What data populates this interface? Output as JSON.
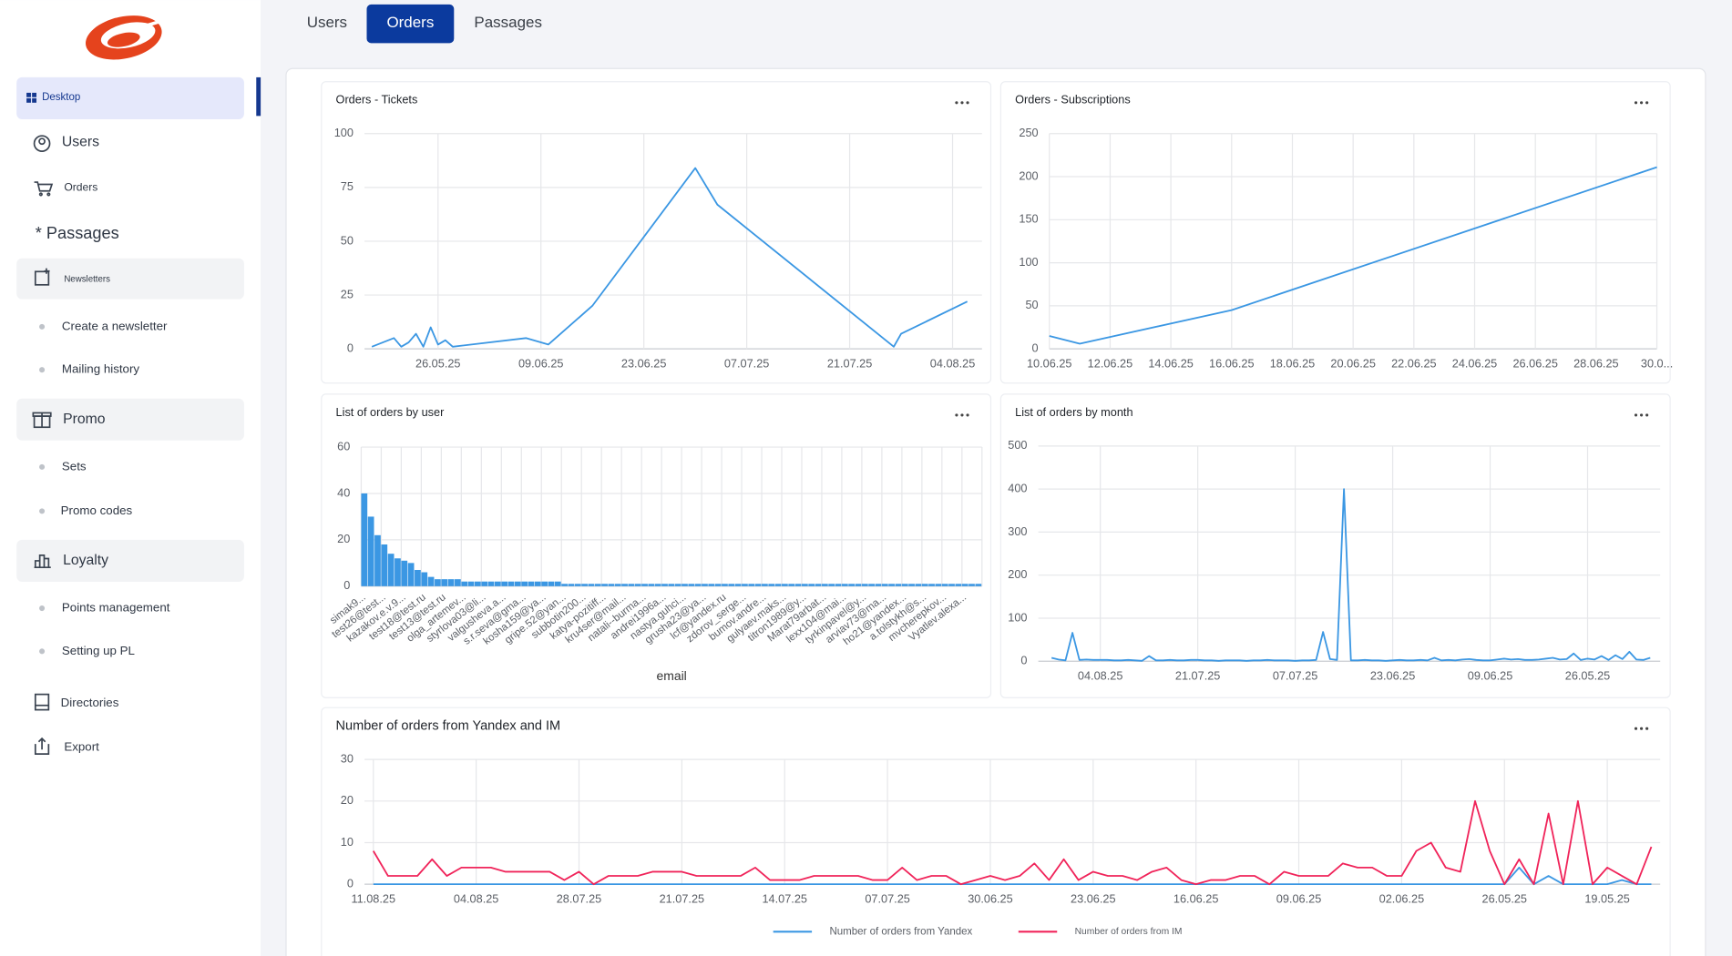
{
  "sidebar": [
    "Desktop",
    "Users",
    "Orders",
    "* Passages",
    "Newsletters",
    "Create a newsletter",
    "Mailing history",
    "Promo",
    "Sets",
    "Promo codes",
    "Loyalty",
    "Points management",
    "Setting up PL",
    "Directories",
    "Export"
  ],
  "tabs": [
    "Users",
    "Orders",
    "Passages"
  ],
  "chart_data": [
    {
      "type": "line",
      "title": "Orders - Tickets",
      "color": "#3b97e3",
      "grid": true,
      "x": [
        "17.05.25",
        "20.05.25",
        "21.05.25",
        "22.05.25",
        "23.05.25",
        "24.05.25",
        "25.05.25",
        "26.05.25",
        "27.05.25",
        "28.05.25",
        "07.06.25",
        "10.06.25",
        "16.06.25",
        "30.06.25",
        "03.07.25",
        "27.07.25",
        "28.07.25",
        "06.08.25"
      ],
      "values": [
        1,
        5,
        1,
        3,
        7,
        1,
        10,
        2,
        4,
        1,
        5,
        2,
        20,
        84,
        67,
        1,
        7,
        22
      ],
      "xlim": [
        "16.05.25",
        "08.08.25"
      ],
      "xticks": [
        "26.05.25",
        "09.06.25",
        "23.06.25",
        "07.07.25",
        "21.07.25",
        "04.08.25"
      ],
      "ylim": [
        0,
        100
      ],
      "yticks": [
        0,
        25,
        50,
        75,
        100
      ]
    },
    {
      "type": "line",
      "title": "Orders - Subscriptions",
      "color": "#3b97e3",
      "grid": true,
      "x": [
        "10.06.25",
        "11.06.25",
        "16.06.25",
        "30.06.25"
      ],
      "values": [
        15,
        6,
        45,
        211
      ],
      "xlim": [
        "10.06.25",
        "30.06.25"
      ],
      "xticks": [
        "10.06.25",
        "12.06.25",
        "14.06.25",
        "16.06.25",
        "18.06.25",
        "20.06.25",
        "22.06.25",
        "24.06.25",
        "26.06.25",
        "28.06.25",
        {
          "value": "30.06.25",
          "label": "30.0..."
        }
      ],
      "ylim": [
        0,
        250
      ],
      "yticks": [
        0,
        50,
        100,
        150,
        200,
        250
      ]
    },
    {
      "type": "bar",
      "title": "List of orders by user",
      "color": "#3b97e3",
      "grid": true,
      "xlabel": "email",
      "categories": [
        "simak9...",
        null,
        null,
        "test26@test...",
        null,
        null,
        "kazakov.e.v.9...",
        null,
        null,
        "test18@test.ru",
        null,
        null,
        "test13@test.ru",
        null,
        null,
        "olga_artemev...",
        null,
        null,
        "styrlova03@li...",
        null,
        null,
        "valgusheva.a...",
        null,
        null,
        "s.r.seva@gma...",
        null,
        null,
        "kosha159@ya...",
        null,
        null,
        "gripe.52@yan...",
        null,
        null,
        "subbotin200...",
        null,
        null,
        "katya-pozitiff...",
        null,
        null,
        "kru4ser@mail...",
        null,
        null,
        "natali--burma...",
        null,
        null,
        "andrei1996a...",
        null,
        null,
        "nastya.guhci...",
        null,
        null,
        "grusha23@ya...",
        null,
        null,
        "lcf@yandex.ru",
        null,
        null,
        "zdorov_serge...",
        null,
        null,
        "bumov.andre...",
        null,
        null,
        "gulyaev.maks...",
        null,
        null,
        "titron1989@y...",
        null,
        null,
        "Marat79arbat...",
        null,
        null,
        "lexx104@mai...",
        null,
        null,
        "tyrkinpavel@y...",
        null,
        null,
        "arviav73@ma...",
        null,
        null,
        "ho21@yandex...",
        null,
        null,
        "a.tolstykh@s...",
        null,
        null,
        "mvcherepkov...",
        null,
        null,
        "Vyatlev.alexa...",
        null,
        null
      ],
      "values": [
        40,
        30,
        22,
        18,
        14,
        12,
        11,
        10,
        7,
        6,
        4,
        3,
        3,
        3,
        3,
        2,
        2,
        2,
        2,
        2,
        2,
        2,
        2,
        2,
        2,
        2,
        2,
        2,
        2,
        2,
        1,
        1,
        1,
        1,
        1,
        1,
        1,
        1,
        1,
        1,
        1,
        1,
        1,
        1,
        1,
        1,
        1,
        1,
        1,
        1,
        1,
        1,
        1,
        1,
        1,
        1,
        1,
        1,
        1,
        1,
        1,
        1,
        1,
        1,
        1,
        1,
        1,
        1,
        1,
        1,
        1,
        1,
        1,
        1,
        1,
        1,
        1,
        1,
        1,
        1,
        1,
        1,
        1,
        1,
        1,
        1,
        1,
        1,
        1,
        1,
        1,
        1,
        1
      ],
      "ylim": [
        0,
        60
      ],
      "yticks": [
        0,
        20,
        40,
        60
      ]
    },
    {
      "type": "line",
      "title": "List of orders by month",
      "color": "#3b97e3",
      "grid": true,
      "categories": [
        null,
        null,
        null,
        null,
        null,
        null,
        null,
        "04.08.25",
        null,
        null,
        null,
        null,
        null,
        null,
        null,
        null,
        null,
        null,
        null,
        null,
        null,
        "21.07.25",
        null,
        null,
        null,
        null,
        null,
        null,
        null,
        null,
        null,
        null,
        null,
        null,
        null,
        "07.07.25",
        null,
        null,
        null,
        null,
        null,
        null,
        null,
        null,
        null,
        null,
        null,
        null,
        null,
        "23.06.25",
        null,
        null,
        null,
        null,
        null,
        null,
        null,
        null,
        null,
        null,
        null,
        null,
        null,
        "09.06.25",
        null,
        null,
        null,
        null,
        null,
        null,
        null,
        null,
        null,
        null,
        null,
        null,
        null,
        "26.05.25",
        null,
        null,
        null,
        null,
        null,
        null,
        null,
        null,
        null
      ],
      "values": [
        8,
        4,
        2,
        66,
        3,
        4,
        3,
        3,
        3,
        2,
        2,
        3,
        2,
        1,
        12,
        2,
        2,
        3,
        2,
        2,
        3,
        3,
        2,
        2,
        1,
        2,
        2,
        2,
        1,
        2,
        2,
        3,
        2,
        2,
        2,
        1,
        2,
        2,
        3,
        68,
        5,
        3,
        400,
        2,
        2,
        3,
        2,
        2,
        1,
        2,
        3,
        2,
        2,
        3,
        2,
        8,
        2,
        3,
        2,
        4,
        5,
        3,
        2,
        2,
        4,
        6,
        4,
        5,
        3,
        3,
        4,
        6,
        8,
        4,
        5,
        18,
        3,
        6,
        4,
        12,
        3,
        14,
        5,
        22,
        4,
        3,
        8
      ],
      "ylim": [
        0,
        500
      ],
      "yticks": [
        0,
        100,
        200,
        300,
        400,
        500
      ]
    },
    {
      "type": "line",
      "title": "Number of orders from Yandex and IM",
      "grid": true,
      "legend": "bottom",
      "categories": [
        "11.08.25",
        null,
        null,
        null,
        null,
        null,
        null,
        "04.08.25",
        null,
        null,
        null,
        null,
        null,
        null,
        "28.07.25",
        null,
        null,
        null,
        null,
        null,
        null,
        "21.07.25",
        null,
        null,
        null,
        null,
        null,
        null,
        "14.07.25",
        null,
        null,
        null,
        null,
        null,
        null,
        "07.07.25",
        null,
        null,
        null,
        null,
        null,
        null,
        "30.06.25",
        null,
        null,
        null,
        null,
        null,
        null,
        "23.06.25",
        null,
        null,
        null,
        null,
        null,
        null,
        "16.06.25",
        null,
        null,
        null,
        null,
        null,
        null,
        "09.06.25",
        null,
        null,
        null,
        null,
        null,
        null,
        "02.06.25",
        null,
        null,
        null,
        null,
        null,
        null,
        "26.05.25",
        null,
        null,
        null,
        null,
        null,
        null,
        "19.05.25",
        null,
        null,
        null
      ],
      "series": [
        {
          "name": "Number of orders from Yandex",
          "color": "#3b97e3",
          "values": [
            0,
            0,
            0,
            0,
            0,
            0,
            0,
            0,
            0,
            0,
            0,
            0,
            0,
            0,
            0,
            0,
            0,
            0,
            0,
            0,
            0,
            0,
            0,
            0,
            0,
            0,
            0,
            0,
            0,
            0,
            0,
            0,
            0,
            0,
            0,
            0,
            0,
            0,
            0,
            0,
            0,
            0,
            0,
            0,
            0,
            0,
            0,
            0,
            0,
            0,
            0,
            0,
            0,
            0,
            0,
            0,
            0,
            0,
            0,
            0,
            0,
            0,
            0,
            0,
            0,
            0,
            0,
            0,
            0,
            0,
            0,
            0,
            0,
            0,
            0,
            0,
            0,
            0,
            4,
            0,
            2,
            0,
            0,
            0,
            0,
            1,
            0,
            0
          ]
        },
        {
          "name": "Number of orders from IM",
          "color": "#f0245a",
          "values": [
            8,
            2,
            2,
            2,
            6,
            2,
            4,
            4,
            4,
            3,
            3,
            3,
            3,
            1,
            3,
            0,
            2,
            2,
            2,
            3,
            3,
            3,
            2,
            2,
            2,
            2,
            4,
            1,
            1,
            1,
            2,
            2,
            2,
            2,
            1,
            1,
            4,
            1,
            2,
            2,
            0,
            1,
            2,
            1,
            2,
            5,
            1,
            6,
            1,
            3,
            2,
            2,
            1,
            3,
            4,
            1,
            0,
            1,
            1,
            2,
            2,
            0,
            3,
            2,
            2,
            2,
            5,
            4,
            4,
            2,
            2,
            8,
            10,
            4,
            3,
            20,
            8,
            0,
            6,
            0,
            17,
            0,
            20,
            0,
            4,
            2,
            0,
            9
          ]
        }
      ],
      "ylim": [
        0,
        30
      ],
      "yticks": [
        0,
        10,
        20,
        30
      ]
    }
  ]
}
